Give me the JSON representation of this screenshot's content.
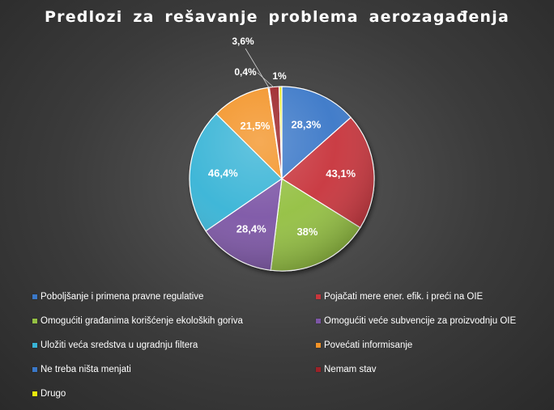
{
  "chart_data": {
    "type": "pie",
    "title": "Predlozi za rešavanje problema aerozagađenja",
    "slices": [
      {
        "label": "Poboljšanje i primena pravne regulative",
        "value": 28.3,
        "value_label": "28,3%",
        "color": "#3a78c8"
      },
      {
        "label": "Pojačati mere ener. efik. i preći na OIE",
        "value": 43.1,
        "value_label": "43,1%",
        "color": "#c8363c"
      },
      {
        "label": "Omogućiti građanima korišćenje ekoloških goriva",
        "value": 38,
        "value_label": "38%",
        "color": "#94c043"
      },
      {
        "label": "Omogućiti veće subvencije za proizvodnju OIE",
        "value": 28.4,
        "value_label": "28,4%",
        "color": "#7d56a6"
      },
      {
        "label": "Uložiti veća sredstva u ugradnju filtera",
        "value": 46.4,
        "value_label": "46,4%",
        "color": "#38b4d6"
      },
      {
        "label": "Povećati informisanje",
        "value": 21.5,
        "value_label": "21,5%",
        "color": "#f39327"
      },
      {
        "label": "Ne treba ništa menjati",
        "value": 0.4,
        "value_label": "0,4%",
        "color": "#3a78c8"
      },
      {
        "label": "Nemam stav",
        "value": 3.6,
        "value_label": "3,6%",
        "color": "#9c2228"
      },
      {
        "label": "Drugo",
        "value": 1,
        "value_label": "1%",
        "color": "#e8e80c"
      }
    ],
    "legend_position": "bottom"
  }
}
